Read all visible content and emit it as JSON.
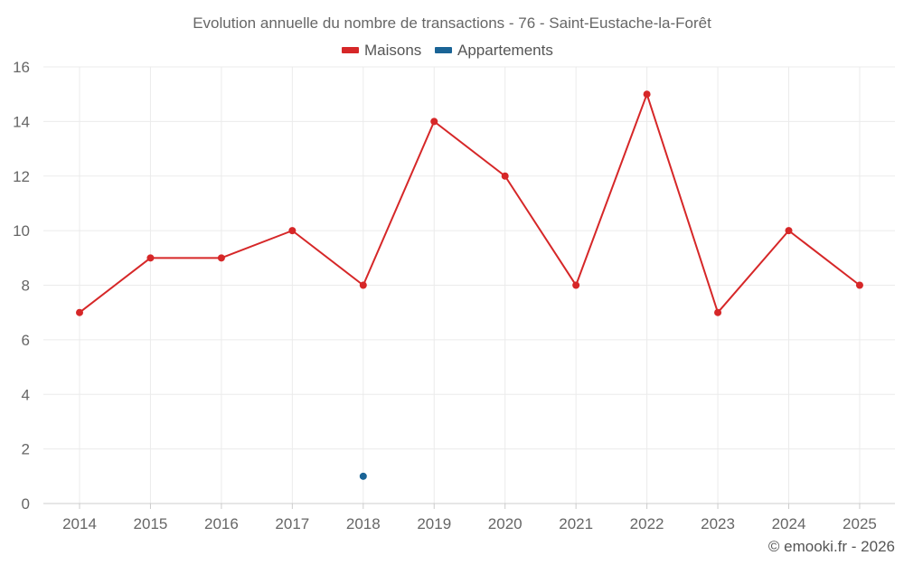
{
  "chart_data": {
    "type": "line",
    "title": "Evolution annuelle du nombre de transactions - 76 - Saint-Eustache-la-Forêt",
    "categories": [
      "2014",
      "2015",
      "2016",
      "2017",
      "2018",
      "2019",
      "2020",
      "2021",
      "2022",
      "2023",
      "2024",
      "2025"
    ],
    "series": [
      {
        "name": "Maisons",
        "color": "#d62728",
        "values": [
          7,
          9,
          9,
          10,
          8,
          14,
          12,
          8,
          15,
          7,
          10,
          8
        ]
      },
      {
        "name": "Appartements",
        "color": "#1a6496",
        "values": [
          null,
          null,
          null,
          null,
          1,
          null,
          null,
          null,
          null,
          null,
          null,
          null
        ]
      }
    ],
    "y_ticks": [
      "0",
      "2",
      "4",
      "6",
      "8",
      "10",
      "12",
      "14",
      "16"
    ],
    "ylim": [
      0,
      16
    ],
    "xlabel": "",
    "ylabel": "",
    "grid": true,
    "legend_position": "top-center"
  },
  "credit": "© emooki.fr - 2026"
}
